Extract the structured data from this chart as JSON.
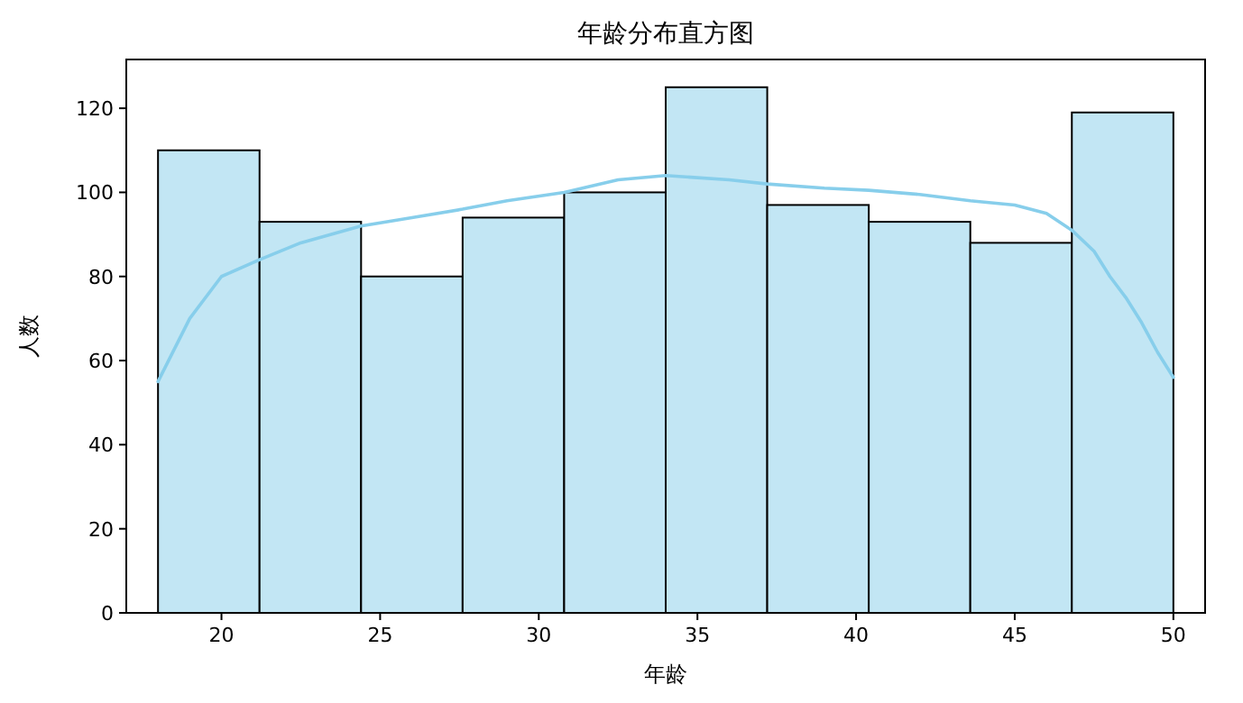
{
  "chart_data": {
    "type": "histogram",
    "title": "年龄分布直方图",
    "xlabel": "年龄",
    "ylabel": "人数",
    "bins": [
      18,
      21.2,
      24.4,
      27.6,
      30.8,
      34,
      37.2,
      40.4,
      43.6,
      46.8,
      50
    ],
    "series": [
      {
        "color": "#c2e6f4",
        "values": [
          110,
          93,
          80,
          94,
          100,
          125,
          97,
          93,
          88,
          119
        ]
      },
      {
        "type": "line",
        "color": "#87ceeb",
        "x": [
          18,
          19,
          20,
          21.2,
          22.5,
          24.4,
          26,
          27.6,
          29,
          30.8,
          32.5,
          34,
          36,
          37.2,
          39,
          40.4,
          42,
          43.6,
          45,
          46,
          46.8,
          47.5,
          48,
          48.5,
          49,
          49.5,
          50
        ],
        "values": [
          55,
          70,
          80,
          84,
          88,
          92,
          94,
          96,
          98,
          100,
          103,
          104,
          103,
          102,
          101,
          100.5,
          99.5,
          98,
          97,
          95,
          91,
          86,
          80,
          75,
          69,
          62,
          56
        ]
      }
    ],
    "xlim": [
      17,
      51
    ],
    "ylim": [
      0,
      131.6
    ],
    "xticks": [
      20,
      25,
      30,
      35,
      40,
      45,
      50
    ],
    "yticks": [
      0,
      20,
      40,
      60,
      80,
      100,
      120
    ]
  }
}
